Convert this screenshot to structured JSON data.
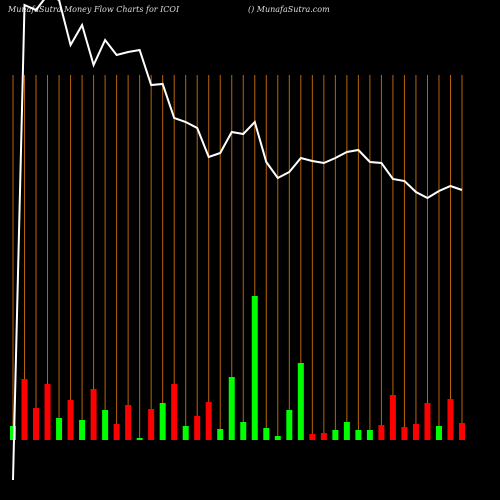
{
  "chart_data": {
    "type": "money-flow",
    "title": "MunafaSutra  Money Flow  Charts for ICOI",
    "subtitle": "() MunafaSutra.com",
    "categories": [
      null,
      null,
      null,
      null,
      null,
      null,
      null,
      null,
      null,
      null,
      null,
      null,
      null,
      null,
      null,
      null,
      null,
      null,
      null,
      null,
      null,
      null,
      null,
      null,
      null,
      null,
      null,
      null,
      null,
      null,
      null,
      null,
      null,
      null,
      null,
      null,
      null,
      null,
      null,
      null
    ],
    "series": [
      {
        "color": "#ffffff",
        "values": [
          20,
          495,
          490,
          505,
          500,
          455,
          475,
          435,
          460,
          445,
          448,
          450,
          415,
          416,
          382,
          378,
          372,
          343,
          347,
          368,
          366,
          378,
          338,
          322,
          328,
          342,
          339,
          337,
          342,
          348,
          350,
          338,
          337,
          321,
          319,
          308,
          302,
          309,
          314,
          310
        ]
      },
      {
        "colors": [
          "#00ff00",
          "#ff0000",
          "#ff0000",
          "#ff0000",
          "#00ff00",
          "#ff0000",
          "#00ff00",
          "#ff0000",
          "#00ff00",
          "#ff0000",
          "#ff0000",
          "#00ff00",
          "#ff0000",
          "#00ff00",
          "#ff0000",
          "#00ff00",
          "#ff0000",
          "#ff0000",
          "#00ff00",
          "#00ff00",
          "#00ff00",
          "#00ff00",
          "#00ff00",
          "#00ff00",
          "#00ff00",
          "#00ff00",
          "#ff0000",
          "#ff0000",
          "#00ff00",
          "#00ff00",
          "#00ff00",
          "#00ff00",
          "#ff0000",
          "#ff0000",
          "#ff0000",
          "#ff0000",
          "#ff0000",
          "#00ff00",
          "#ff0000",
          "#ff0000"
        ],
        "values": [
          14,
          61,
          32,
          56,
          22,
          40,
          20,
          51,
          30,
          16,
          35,
          2,
          31,
          37,
          56,
          14,
          24,
          38,
          11,
          63,
          18,
          144,
          12,
          4,
          30,
          77,
          6,
          7,
          10,
          18,
          10,
          10,
          15,
          45,
          13,
          16,
          37,
          14,
          41,
          17
        ]
      }
    ],
    "ylim": [
      0,
      500
    ],
    "y2lim": [
      0,
      440
    ],
    "grid": true,
    "grid_color": "#b8650a",
    "background": "#000000"
  }
}
